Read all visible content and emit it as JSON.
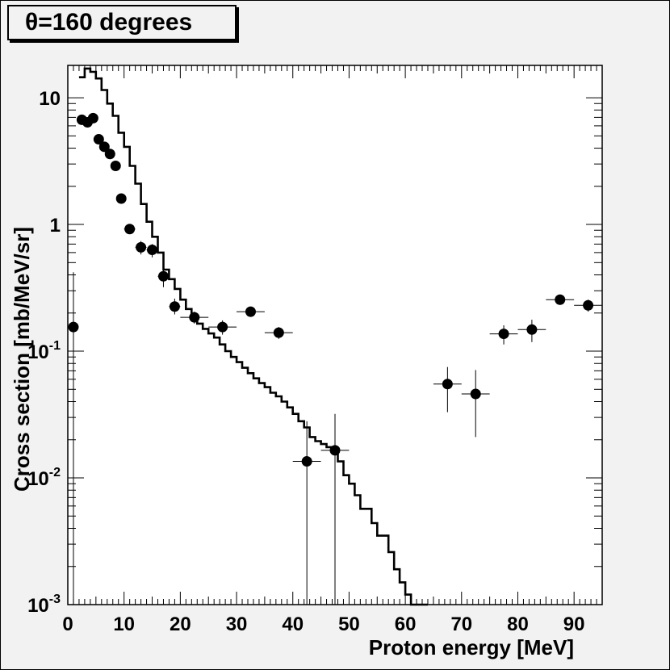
{
  "title": "θ=160 degrees",
  "chart_data": {
    "type": "scatter",
    "xlabel": "Proton energy [MeV]",
    "ylabel": "Cross section [mb/MeV/sr]",
    "xlim": [
      0,
      95
    ],
    "ylim": [
      0.001,
      18
    ],
    "yscale": "log",
    "grid": false,
    "x_ticks": [
      0,
      10,
      20,
      30,
      40,
      50,
      60,
      70,
      80,
      90
    ],
    "y_ticks": [
      {
        "value": 0.001,
        "base": "10",
        "exp": "-3"
      },
      {
        "value": 0.01,
        "base": "10",
        "exp": "-2"
      },
      {
        "value": 0.1,
        "base": "10",
        "exp": "-1"
      },
      {
        "value": 1,
        "base": "1",
        "exp": ""
      },
      {
        "value": 10,
        "base": "10",
        "exp": ""
      }
    ],
    "points": [
      {
        "x": 1,
        "y": 0.155,
        "xerr": 0.5,
        "ylo": 0.001,
        "yhi": 0.42
      },
      {
        "x": 2.5,
        "y": 6.7,
        "xerr": 0.5
      },
      {
        "x": 3.5,
        "y": 6.4,
        "xerr": 0.5
      },
      {
        "x": 4.5,
        "y": 6.9,
        "xerr": 0.5
      },
      {
        "x": 5.5,
        "y": 4.7,
        "xerr": 0.5
      },
      {
        "x": 6.5,
        "y": 4.1,
        "xerr": 0.5
      },
      {
        "x": 7.5,
        "y": 3.6,
        "xerr": 0.5
      },
      {
        "x": 8.5,
        "y": 2.9,
        "xerr": 0.5
      },
      {
        "x": 9.5,
        "y": 1.6,
        "xerr": 0.5
      },
      {
        "x": 11,
        "y": 0.92,
        "xerr": 1
      },
      {
        "x": 13,
        "y": 0.66,
        "xerr": 1,
        "ylo": 0.58,
        "yhi": 0.74
      },
      {
        "x": 15,
        "y": 0.63,
        "xerr": 1,
        "ylo": 0.55,
        "yhi": 0.7
      },
      {
        "x": 17,
        "y": 0.39,
        "xerr": 1,
        "ylo": 0.32,
        "yhi": 0.46
      },
      {
        "x": 19,
        "y": 0.225,
        "xerr": 1,
        "ylo": 0.195,
        "yhi": 0.26
      },
      {
        "x": 22.5,
        "y": 0.185,
        "xerr": 2.5,
        "ylo": 0.165,
        "yhi": 0.205
      },
      {
        "x": 27.5,
        "y": 0.155,
        "xerr": 2.5,
        "ylo": 0.135,
        "yhi": 0.175
      },
      {
        "x": 32.5,
        "y": 0.205,
        "xerr": 2.5,
        "ylo": 0.19,
        "yhi": 0.22
      },
      {
        "x": 37.5,
        "y": 0.14,
        "xerr": 2.5,
        "ylo": 0.125,
        "yhi": 0.155
      },
      {
        "x": 42.5,
        "y": 0.0135,
        "xerr": 2.5,
        "ylo": 0.001,
        "yhi": 0.028
      },
      {
        "x": 47.5,
        "y": 0.0165,
        "xerr": 2.5,
        "ylo": 0.001,
        "yhi": 0.032
      },
      {
        "x": 67.5,
        "y": 0.055,
        "xerr": 2.5,
        "ylo": 0.033,
        "yhi": 0.075
      },
      {
        "x": 72.5,
        "y": 0.046,
        "xerr": 2.5,
        "ylo": 0.021,
        "yhi": 0.071
      },
      {
        "x": 77.5,
        "y": 0.137,
        "xerr": 2.5,
        "ylo": 0.113,
        "yhi": 0.16
      },
      {
        "x": 82.5,
        "y": 0.148,
        "xerr": 2.5,
        "ylo": 0.118,
        "yhi": 0.177
      },
      {
        "x": 87.5,
        "y": 0.255,
        "xerr": 2.5,
        "ylo": 0.235,
        "yhi": 0.275
      },
      {
        "x": 92.5,
        "y": 0.23,
        "xerr": 2.5,
        "ylo": 0.205,
        "yhi": 0.255
      }
    ],
    "histogram": {
      "edges": [
        2,
        3,
        4,
        5,
        6,
        7,
        8,
        9,
        10,
        11,
        12,
        13,
        14,
        15,
        16,
        17,
        18,
        19,
        20,
        21,
        22,
        23,
        24,
        25,
        26,
        27,
        28,
        29,
        30,
        31,
        32,
        33,
        34,
        35,
        36,
        37,
        38,
        39,
        40,
        41,
        42,
        43,
        44,
        45,
        46,
        47,
        48,
        49,
        50,
        51,
        52,
        53,
        54,
        55,
        56,
        57,
        58,
        59,
        60,
        61,
        62,
        63,
        64
      ],
      "values": [
        14.5,
        17,
        16,
        14.2,
        11.5,
        9,
        7.2,
        5.3,
        4.1,
        2.9,
        2.1,
        1.45,
        1.05,
        0.8,
        0.6,
        0.44,
        0.37,
        0.31,
        0.255,
        0.215,
        0.185,
        0.165,
        0.15,
        0.138,
        0.128,
        0.113,
        0.1,
        0.09,
        0.082,
        0.074,
        0.067,
        0.061,
        0.056,
        0.052,
        0.047,
        0.044,
        0.04,
        0.036,
        0.032,
        0.028,
        0.025,
        0.021,
        0.0195,
        0.0185,
        0.0175,
        0.0165,
        0.0135,
        0.0105,
        0.009,
        0.0073,
        0.0057,
        0.0057,
        0.0044,
        0.0035,
        0.0035,
        0.0026,
        0.0019,
        0.0015,
        0.0012,
        0.00095,
        0.0008,
        0.00095
      ]
    }
  }
}
